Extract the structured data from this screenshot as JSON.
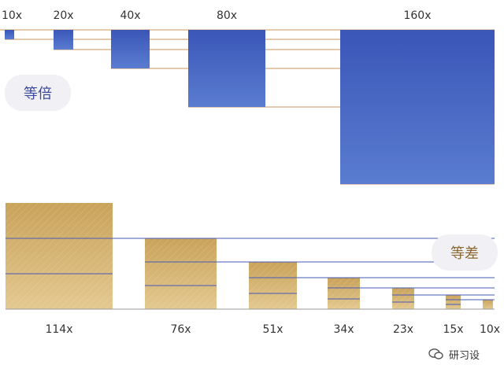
{
  "colors": {
    "blue_top": "#3a56b8",
    "blue_bottom": "#5a7cd0",
    "gold_top": "#c9a25a",
    "gold_bottom": "#e3c88f",
    "guide_orange": "#c9955a",
    "guide_blue": "#4659b6",
    "baseline": "#9a9a9a",
    "label_text": "#333333"
  },
  "labels": {
    "geometric": "等倍",
    "arithmetic": "等差",
    "watermark": "研习设"
  },
  "chart_data": [
    {
      "type": "bar",
      "title": "等倍",
      "categories": [
        "10x",
        "20x",
        "40x",
        "80x",
        "160x"
      ],
      "values": [
        10,
        20,
        40,
        80,
        160
      ],
      "orientation": "hanging from top",
      "guides": "horizontal line at each bar's height extending right"
    },
    {
      "type": "bar",
      "title": "等差",
      "categories": [
        "114x",
        "76x",
        "51x",
        "34x",
        "23x",
        "15x",
        "10x"
      ],
      "values": [
        114,
        76,
        51,
        34,
        23,
        15,
        10
      ],
      "orientation": "rising from baseline",
      "guides": "horizontal line at each bar's height extending right"
    }
  ]
}
